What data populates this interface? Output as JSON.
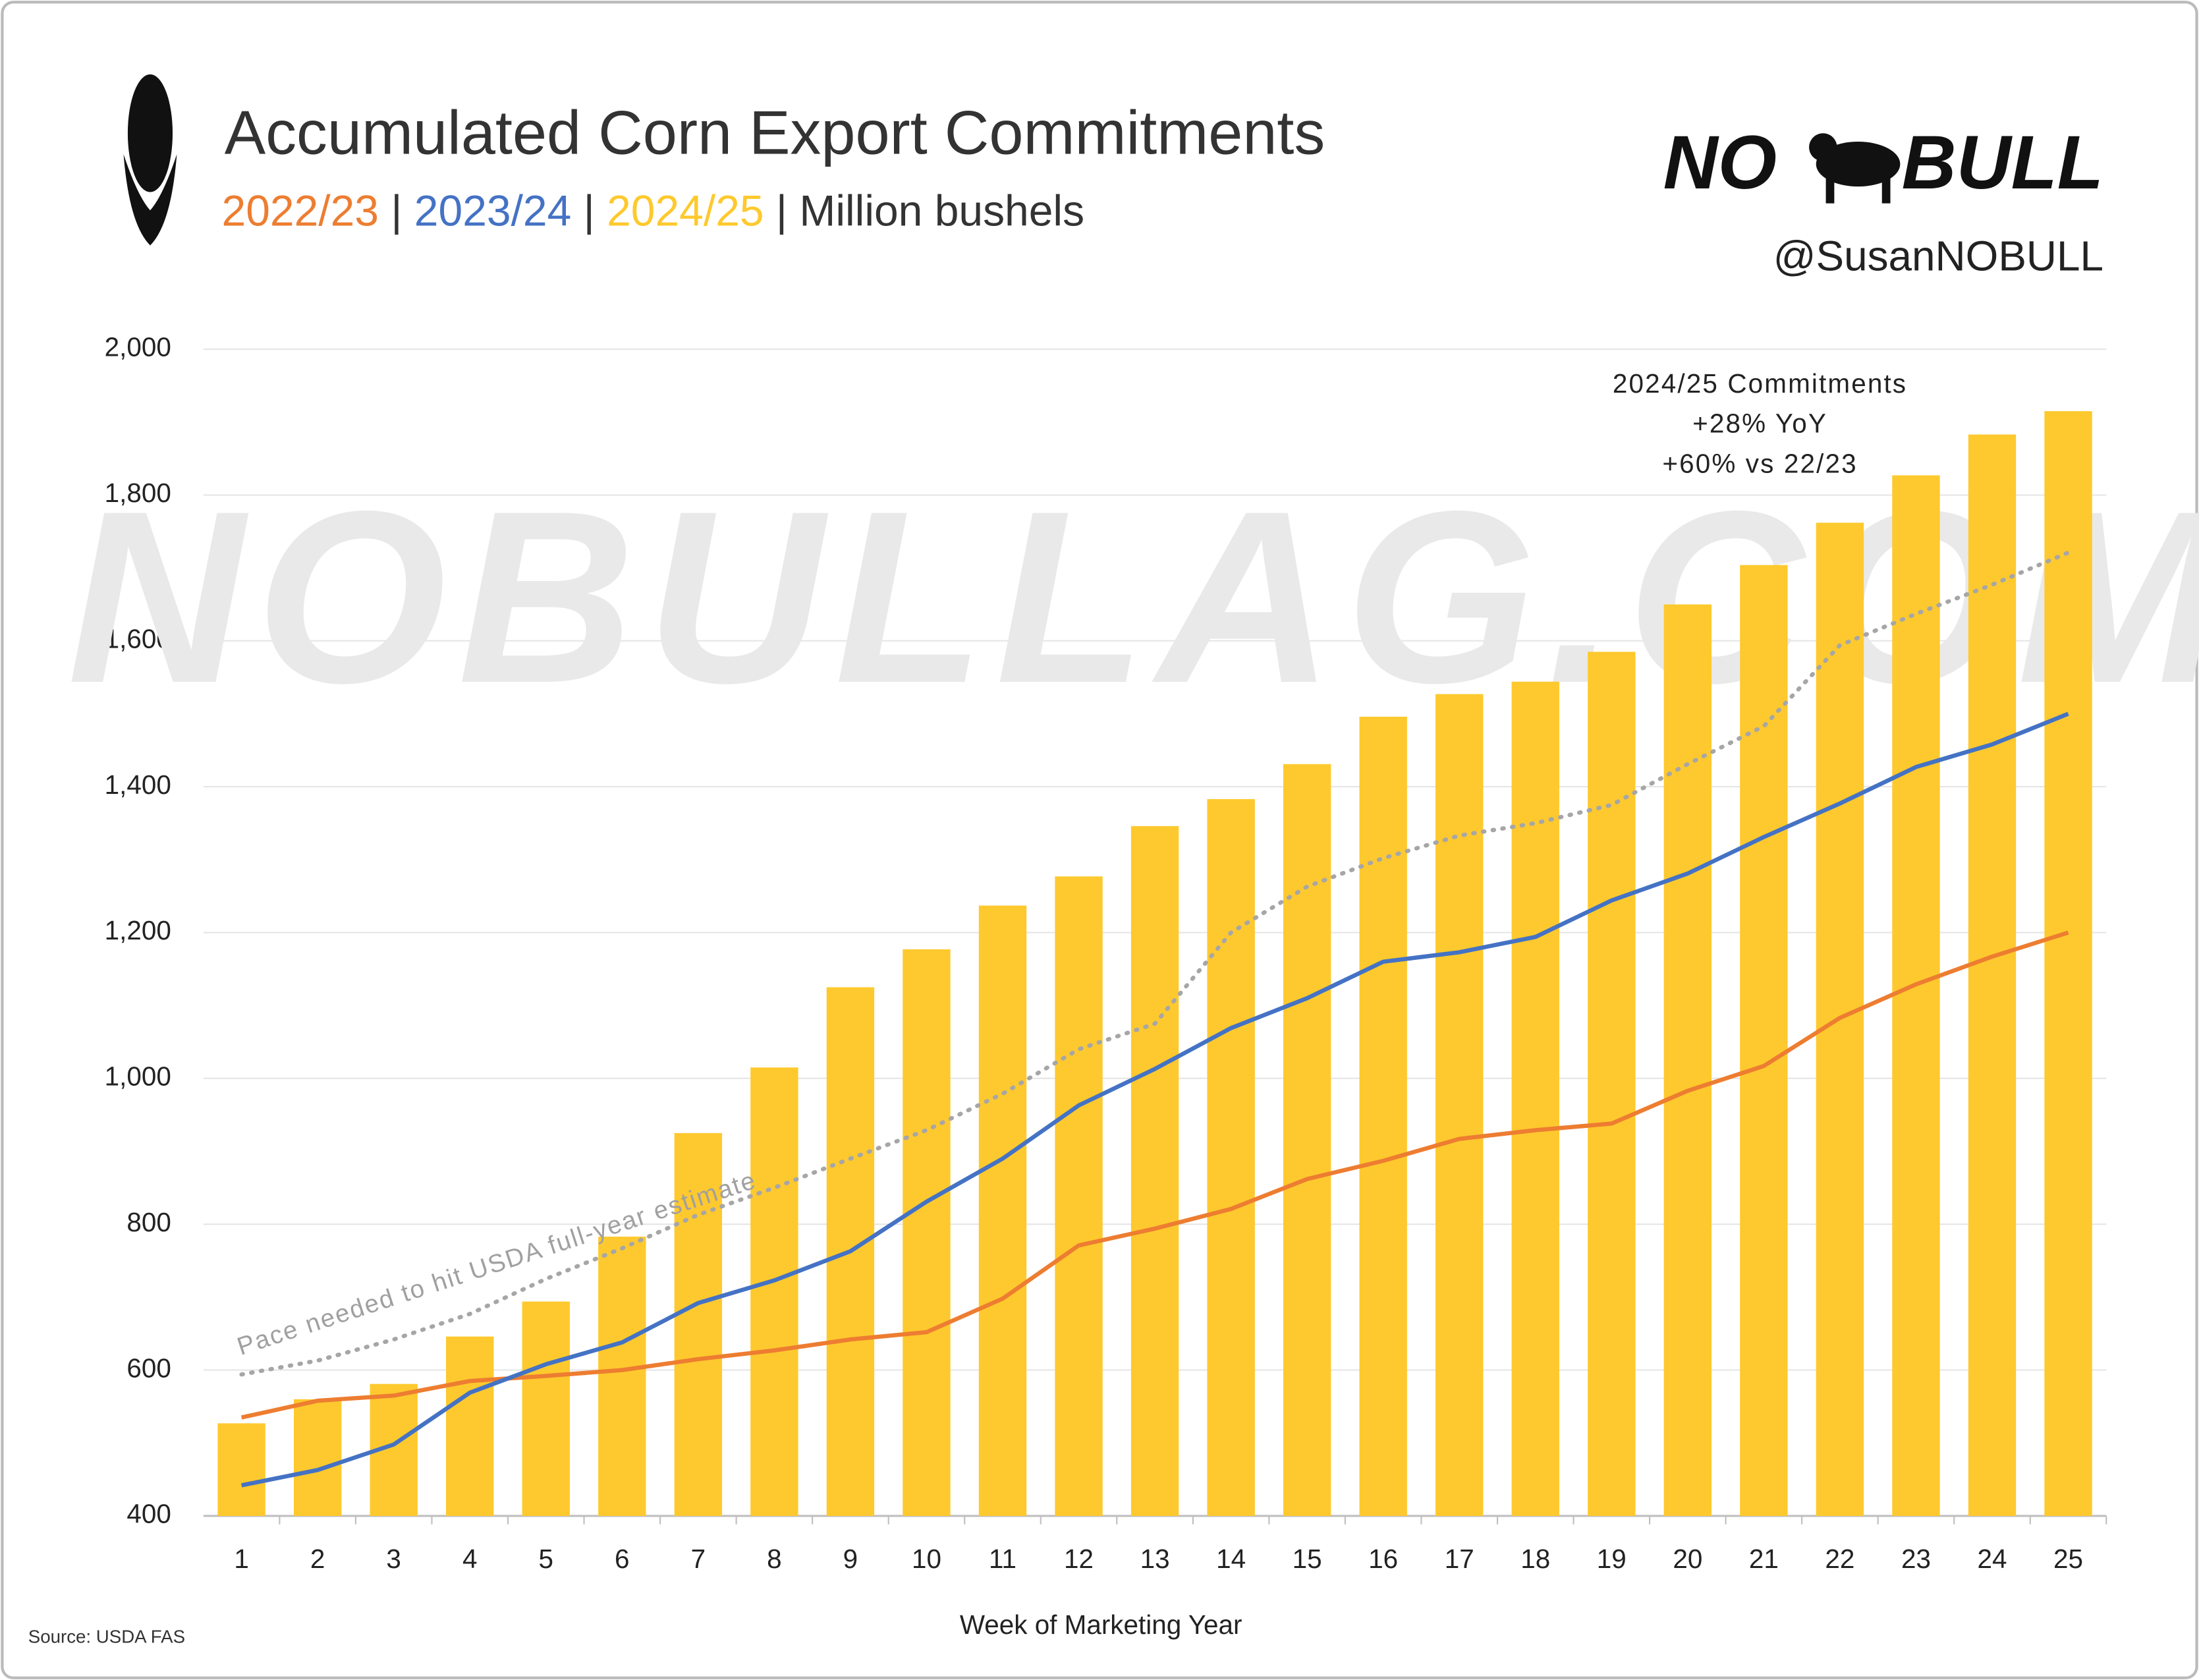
{
  "chart_data": {
    "type": "bar-line",
    "title": "Accumulated Corn Export Commitments",
    "separator": "|",
    "unit": "Million bushels",
    "brand": {
      "left": "NO",
      "right": "BULL",
      "handle": "@SusanNOBULL",
      "watermark": "NOBULLAG.COM"
    },
    "source": "Source: USDA FAS",
    "xlabel": "Week of Marketing Year",
    "x": [
      1,
      2,
      3,
      4,
      5,
      6,
      7,
      8,
      9,
      10,
      11,
      12,
      13,
      14,
      15,
      16,
      17,
      18,
      19,
      20,
      21,
      22,
      23,
      24,
      25
    ],
    "ylim": [
      400,
      2000
    ],
    "yticks": [
      400,
      600,
      800,
      {
        "value": 1000,
        "label": "1,000"
      },
      {
        "value": 1200,
        "label": "1,200"
      },
      {
        "value": 1400,
        "label": "1,400"
      },
      {
        "value": 1600,
        "label": "1,600"
      },
      {
        "value": 1800,
        "label": "1,800"
      },
      {
        "value": 2000,
        "label": "2,000"
      }
    ],
    "grid": true,
    "series": [
      {
        "name": "2022/23",
        "color": "#ed7d31",
        "kind": "line",
        "values": [
          535,
          558,
          565,
          585,
          592,
          600,
          615,
          627,
          642,
          652,
          698,
          771,
          794,
          821,
          862,
          887,
          917,
          929,
          938,
          983,
          1017,
          1083,
          1129,
          1167,
          1200
        ]
      },
      {
        "name": "2023/24",
        "color": "#4472c4",
        "kind": "line",
        "values": [
          442,
          463,
          498,
          569,
          608,
          638,
          692,
          723,
          763,
          831,
          890,
          963,
          1013,
          1069,
          1110,
          1160,
          1173,
          1194,
          1244,
          1281,
          1331,
          1377,
          1427,
          1458,
          1500
        ]
      },
      {
        "name": "2024/25",
        "color": "#fec92e",
        "kind": "bar",
        "values": [
          527,
          560,
          581,
          646,
          694,
          783,
          925,
          1015,
          1125,
          1177,
          1237,
          1277,
          1346,
          1383,
          1431,
          1496,
          1527,
          1544,
          1585,
          1650,
          1704,
          1762,
          1827,
          1883,
          1915
        ]
      },
      {
        "name": "Pace needed to hit USDA full-year estimate",
        "color": "#a6a6a6",
        "kind": "dotted",
        "values": [
          594,
          613,
          642,
          677,
          725,
          767,
          813,
          850,
          890,
          929,
          979,
          1040,
          1075,
          1200,
          1263,
          1302,
          1333,
          1350,
          1375,
          1431,
          1483,
          1594,
          1637,
          1677,
          1721
        ]
      }
    ],
    "annotation": [
      "2024/25 Commitments",
      "+28% YoY",
      "+60% vs 22/23"
    ]
  }
}
